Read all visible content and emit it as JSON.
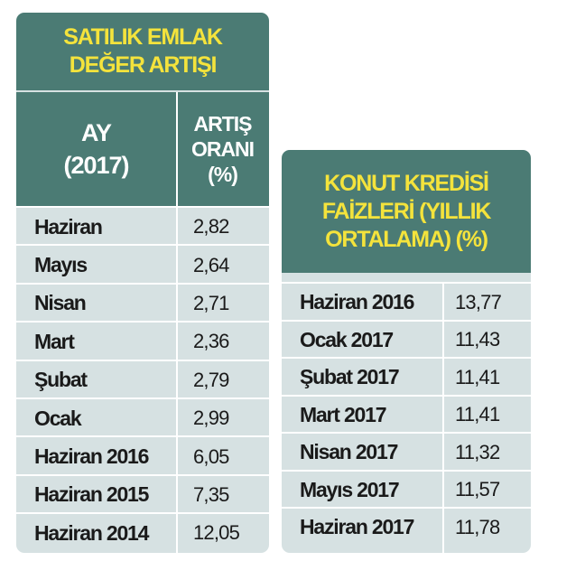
{
  "tables": [
    {
      "title_lines": [
        "SATILIK EMLAK",
        "DEĞER ARTIŞI"
      ],
      "headers": [
        [
          "AY",
          "(2017)"
        ],
        [
          "ARTIŞ",
          "ORANI",
          "(%)"
        ]
      ],
      "rows": [
        [
          "Haziran",
          "2,82"
        ],
        [
          "Mayıs",
          "2,64"
        ],
        [
          "Nisan",
          "2,71"
        ],
        [
          "Mart",
          "2,36"
        ],
        [
          "Şubat",
          "2,79"
        ],
        [
          "Ocak",
          "2,99"
        ],
        [
          "Haziran 2016",
          "6,05"
        ],
        [
          "Haziran 2015",
          "7,35"
        ],
        [
          "Haziran 2014",
          "12,05"
        ]
      ]
    },
    {
      "title_lines": [
        "KONUT KREDİSİ",
        "FAİZLERİ (YILLIK",
        "ORTALAMA) (%)"
      ],
      "rows": [
        [
          "Haziran 2016",
          "13,77"
        ],
        [
          "Ocak 2017",
          "11,43"
        ],
        [
          "Şubat 2017",
          "11,41"
        ],
        [
          "Mart 2017",
          "11,41"
        ],
        [
          "Nisan 2017",
          "11,32"
        ],
        [
          "Mayıs 2017",
          "11,57"
        ],
        [
          "Haziran 2017",
          "11,78"
        ]
      ]
    }
  ]
}
